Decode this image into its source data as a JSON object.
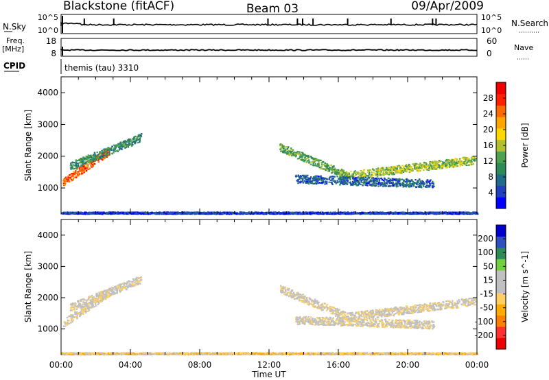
{
  "header": {
    "title_left": "Blackstone (fitACF)",
    "title_center": "Beam 03",
    "title_right": "09/Apr/2009"
  },
  "strips": {
    "nsky_label": "N.Sky",
    "nsky_ticks": [
      "10^5",
      "10^0"
    ],
    "nsearch_label": "N.Search",
    "nsearch_ticks": [
      "10^5",
      "10^0"
    ],
    "freq_label_1": "Freq.",
    "freq_label_2": "[MHz]",
    "freq_ticks": [
      "18",
      "8"
    ],
    "nave_label": "Nave",
    "nave_ticks": [
      "60",
      "0"
    ],
    "cpid_label": "CPID",
    "cpid_value": "themis (tau) 3310"
  },
  "chart_data": [
    {
      "type": "heatmap",
      "name": "power-panel",
      "ylabel": "Slant Range [km]",
      "xlabel": "Time UT",
      "x_ticks": [
        "00:00",
        "04:00",
        "08:00",
        "12:00",
        "16:00",
        "20:00",
        "00:00"
      ],
      "y_ticks": [
        "1000",
        "2000",
        "3000",
        "4000"
      ],
      "xlim_hours": [
        0,
        24
      ],
      "ylim_km": [
        180,
        4500
      ],
      "colorbar": {
        "label": "Power [dB]",
        "ticks": [
          "28",
          "24",
          "20",
          "16",
          "12",
          "8",
          "4"
        ],
        "range": [
          0,
          30
        ],
        "colors": [
          "#0000ff",
          "#2040c0",
          "#206a8a",
          "#2e8b57",
          "#4fa04f",
          "#b0c030",
          "#ffd700",
          "#ffa500",
          "#ff6a00",
          "#ff2000",
          "#ee0000"
        ]
      },
      "features": [
        {
          "t_start": 0.1,
          "t_end": 2.8,
          "r_start": 1200,
          "r_end": 2200,
          "level": 24
        },
        {
          "t_start": 0.5,
          "t_end": 4.6,
          "r_start": 1700,
          "r_end": 2600,
          "level": 10
        },
        {
          "t_start": 12.6,
          "t_end": 16.5,
          "r_start": 2300,
          "r_end": 1400,
          "level": 12
        },
        {
          "t_start": 16.5,
          "t_end": 23.9,
          "r_start": 1400,
          "r_end": 1900,
          "level": 14
        },
        {
          "t_start": 13.5,
          "t_end": 21.5,
          "r_start": 1300,
          "r_end": 1150,
          "level": 6
        },
        {
          "t_start": 0.0,
          "t_end": 24.0,
          "r_start": 230,
          "r_end": 230,
          "level": 4
        }
      ]
    },
    {
      "type": "heatmap",
      "name": "velocity-panel",
      "ylabel": "Slant Range [km]",
      "xlabel": "Time UT",
      "x_ticks": [
        "00:00",
        "04:00",
        "08:00",
        "12:00",
        "16:00",
        "20:00",
        "00:00"
      ],
      "y_ticks": [
        "1000",
        "2000",
        "3000",
        "4000"
      ],
      "xlim_hours": [
        0,
        24
      ],
      "ylim_km": [
        180,
        4500
      ],
      "colorbar": {
        "label": "Velocity [m s^-1]",
        "ticks": [
          "200",
          "100",
          "50",
          "15",
          "-15",
          "-50",
          "-100",
          "-200"
        ],
        "range": [
          -250,
          250
        ],
        "colors": [
          "#ee0000",
          "#ff3030",
          "#ff7f00",
          "#ffaa00",
          "#ffd060",
          "#c0c0c0",
          "#c0c0c0",
          "#70d040",
          "#2e8b57",
          "#3050c0",
          "#0000cc"
        ]
      },
      "features": [
        {
          "t_start": 0.1,
          "t_end": 2.8,
          "r_start": 1200,
          "r_end": 2200,
          "level": 0
        },
        {
          "t_start": 0.5,
          "t_end": 4.6,
          "r_start": 1700,
          "r_end": 2600,
          "level": 0
        },
        {
          "t_start": 12.6,
          "t_end": 16.5,
          "r_start": 2300,
          "r_end": 1400,
          "level": 0
        },
        {
          "t_start": 16.5,
          "t_end": 23.9,
          "r_start": 1400,
          "r_end": 1900,
          "level": 0
        },
        {
          "t_start": 13.5,
          "t_end": 21.5,
          "r_start": 1300,
          "r_end": 1150,
          "level": 0
        },
        {
          "t_start": 0.0,
          "t_end": 24.0,
          "r_start": 230,
          "r_end": 230,
          "level": -40
        }
      ]
    }
  ]
}
